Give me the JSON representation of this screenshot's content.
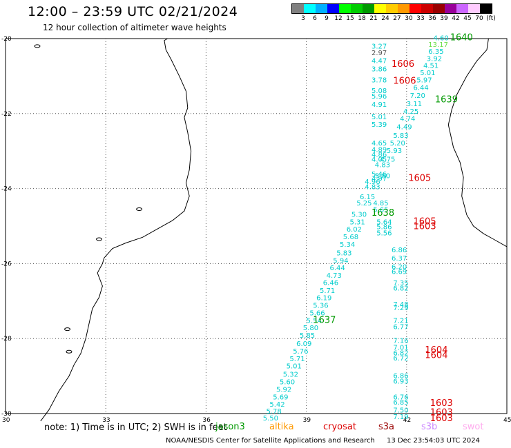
{
  "header": {
    "title": "12:00 – 23:59 UTC 02/21/2024",
    "subtitle": "12 hour collection of altimeter wave heights"
  },
  "color_scale": {
    "colors": [
      "#808080",
      "#00ffff",
      "#00b0ff",
      "#0000ff",
      "#00ff00",
      "#00cc00",
      "#009900",
      "#ffff00",
      "#ffcc00",
      "#ff9900",
      "#ff0000",
      "#cc0000",
      "#990000",
      "#990099",
      "#cc66ff",
      "#ffccff",
      "#000000"
    ],
    "labels": [
      "3",
      "6",
      "9",
      "12",
      "15",
      "18",
      "21",
      "24",
      "27",
      "30",
      "33",
      "36",
      "39",
      "42",
      "45",
      "70",
      "(ft)"
    ]
  },
  "map": {
    "lat_labels": [
      "-20",
      "-22",
      "-24",
      "-26",
      "-28",
      "-30"
    ],
    "lon_labels": [
      "30",
      "33",
      "36",
      "39",
      "42",
      "45"
    ],
    "coastline_color": "#000000",
    "grid_color": "#555555"
  },
  "observations": [
    {
      "lon": 40.95,
      "lat": -20.27,
      "label": "3.27",
      "color": "#00cccc"
    },
    {
      "lon": 40.95,
      "lat": -20.44,
      "label": "2.97",
      "color": "#555555"
    },
    {
      "lon": 40.95,
      "lat": -20.65,
      "label": "4.47",
      "color": "#00cccc"
    },
    {
      "lon": 40.95,
      "lat": -20.87,
      "label": "3.86",
      "color": "#00cccc"
    },
    {
      "lon": 40.95,
      "lat": -21.17,
      "label": "3.78",
      "color": "#00cccc"
    },
    {
      "lon": 40.95,
      "lat": -21.45,
      "label": "5.08",
      "color": "#00cccc"
    },
    {
      "lon": 40.95,
      "lat": -21.6,
      "label": "5.96",
      "color": "#00cccc"
    },
    {
      "lon": 40.95,
      "lat": -21.82,
      "label": "4.91",
      "color": "#00cccc"
    },
    {
      "lon": 40.95,
      "lat": -22.15,
      "label": "5.01",
      "color": "#00cccc"
    },
    {
      "lon": 40.95,
      "lat": -22.35,
      "label": "5.39",
      "color": "#00cccc"
    },
    {
      "lon": 40.95,
      "lat": -22.85,
      "label": "4.65",
      "color": "#00cccc"
    },
    {
      "lon": 40.95,
      "lat": -23.02,
      "label": "4.89",
      "color": "#00cccc"
    },
    {
      "lon": 40.95,
      "lat": -23.15,
      "label": "4.86",
      "color": "#00cccc"
    },
    {
      "lon": 40.95,
      "lat": -23.28,
      "label": "4.05",
      "color": "#00cccc"
    },
    {
      "lon": 41.05,
      "lat": -23.43,
      "label": "4.83",
      "color": "#00cccc"
    },
    {
      "lon": 40.95,
      "lat": -23.68,
      "label": "5.46",
      "color": "#00cccc"
    },
    {
      "lon": 40.95,
      "lat": -23.8,
      "label": "4.97",
      "color": "#00cccc"
    },
    {
      "lon": 40.75,
      "lat": -23.88,
      "label": "4.96",
      "color": "#00cccc"
    },
    {
      "lon": 40.75,
      "lat": -24.02,
      "label": "4.83",
      "color": "#00cccc"
    },
    {
      "lon": 40.6,
      "lat": -24.28,
      "label": "6.15",
      "color": "#00cccc"
    },
    {
      "lon": 40.5,
      "lat": -24.45,
      "label": "5.25",
      "color": "#00cccc"
    },
    {
      "lon": 41.0,
      "lat": -24.45,
      "label": "4.85",
      "color": "#00cccc"
    },
    {
      "lon": 41.0,
      "lat": -24.62,
      "label": "5.65",
      "color": "#00cccc"
    },
    {
      "lon": 40.35,
      "lat": -24.75,
      "label": "5.30",
      "color": "#00cccc"
    },
    {
      "lon": 40.3,
      "lat": -24.95,
      "label": "5.31",
      "color": "#00cccc"
    },
    {
      "lon": 41.1,
      "lat": -24.95,
      "label": "5.64",
      "color": "#00cccc"
    },
    {
      "lon": 41.1,
      "lat": -25.08,
      "label": "5.86",
      "color": "#00cccc"
    },
    {
      "lon": 40.2,
      "lat": -25.15,
      "label": "6.02",
      "color": "#00cccc"
    },
    {
      "lon": 41.1,
      "lat": -25.25,
      "label": "5.56",
      "color": "#00cccc"
    },
    {
      "lon": 40.1,
      "lat": -25.35,
      "label": "5.68",
      "color": "#00cccc"
    },
    {
      "lon": 40.0,
      "lat": -25.55,
      "label": "5.34",
      "color": "#00cccc"
    },
    {
      "lon": 41.55,
      "lat": -25.7,
      "label": "6.86",
      "color": "#00cccc"
    },
    {
      "lon": 39.9,
      "lat": -25.78,
      "label": "5.83",
      "color": "#00cccc"
    },
    {
      "lon": 41.55,
      "lat": -25.92,
      "label": "6.37",
      "color": "#00cccc"
    },
    {
      "lon": 39.8,
      "lat": -25.98,
      "label": "5.94",
      "color": "#00cccc"
    },
    {
      "lon": 39.7,
      "lat": -26.18,
      "label": "6.44",
      "color": "#00cccc"
    },
    {
      "lon": 41.55,
      "lat": -26.15,
      "label": "6.20",
      "color": "#00cccc"
    },
    {
      "lon": 41.55,
      "lat": -26.28,
      "label": "6.69",
      "color": "#00cccc"
    },
    {
      "lon": 39.6,
      "lat": -26.38,
      "label": "4.73",
      "color": "#00cccc"
    },
    {
      "lon": 39.5,
      "lat": -26.57,
      "label": "6.46",
      "color": "#00cccc"
    },
    {
      "lon": 41.6,
      "lat": -26.58,
      "label": "7.35",
      "color": "#00cccc"
    },
    {
      "lon": 41.6,
      "lat": -26.72,
      "label": "6.82",
      "color": "#00cccc"
    },
    {
      "lon": 39.4,
      "lat": -26.78,
      "label": "5.71",
      "color": "#00cccc"
    },
    {
      "lon": 39.3,
      "lat": -26.98,
      "label": "6.19",
      "color": "#00cccc"
    },
    {
      "lon": 41.6,
      "lat": -27.15,
      "label": "7.48",
      "color": "#00cccc"
    },
    {
      "lon": 41.6,
      "lat": -27.24,
      "label": "7.29",
      "color": "#00cccc"
    },
    {
      "lon": 39.2,
      "lat": -27.18,
      "label": "5.36",
      "color": "#00cccc"
    },
    {
      "lon": 39.1,
      "lat": -27.38,
      "label": "5.66",
      "color": "#00cccc"
    },
    {
      "lon": 39.0,
      "lat": -27.58,
      "label": "5.54",
      "color": "#00cccc"
    },
    {
      "lon": 41.6,
      "lat": -27.58,
      "label": "7.21",
      "color": "#00cccc"
    },
    {
      "lon": 41.6,
      "lat": -27.75,
      "label": "6.77",
      "color": "#00cccc"
    },
    {
      "lon": 38.9,
      "lat": -27.78,
      "label": "5.80",
      "color": "#00cccc"
    },
    {
      "lon": 38.8,
      "lat": -27.98,
      "label": "5.85",
      "color": "#00cccc"
    },
    {
      "lon": 41.6,
      "lat": -28.12,
      "label": "7.16",
      "color": "#00cccc"
    },
    {
      "lon": 38.7,
      "lat": -28.2,
      "label": "6.09",
      "color": "#00cccc"
    },
    {
      "lon": 41.6,
      "lat": -28.3,
      "label": "7.01",
      "color": "#00cccc"
    },
    {
      "lon": 38.6,
      "lat": -28.4,
      "label": "5.76",
      "color": "#00cccc"
    },
    {
      "lon": 41.6,
      "lat": -28.45,
      "label": "6.82",
      "color": "#00cccc"
    },
    {
      "lon": 41.6,
      "lat": -28.58,
      "label": "6.72",
      "color": "#00cccc"
    },
    {
      "lon": 38.5,
      "lat": -28.6,
      "label": "5.71",
      "color": "#00cccc"
    },
    {
      "lon": 38.4,
      "lat": -28.8,
      "label": "5.01",
      "color": "#00cccc"
    },
    {
      "lon": 38.3,
      "lat": -29.02,
      "label": "5.32",
      "color": "#00cccc"
    },
    {
      "lon": 41.6,
      "lat": -29.05,
      "label": "6.86",
      "color": "#00cccc"
    },
    {
      "lon": 41.6,
      "lat": -29.2,
      "label": "6.93",
      "color": "#00cccc"
    },
    {
      "lon": 38.2,
      "lat": -29.22,
      "label": "5.60",
      "color": "#00cccc"
    },
    {
      "lon": 38.1,
      "lat": -29.42,
      "label": "5.92",
      "color": "#00cccc"
    },
    {
      "lon": 38.0,
      "lat": -29.62,
      "label": "5.69",
      "color": "#00cccc"
    },
    {
      "lon": 41.6,
      "lat": -29.62,
      "label": "6.76",
      "color": "#00cccc"
    },
    {
      "lon": 41.6,
      "lat": -29.76,
      "label": "6.85",
      "color": "#00cccc"
    },
    {
      "lon": 37.9,
      "lat": -29.82,
      "label": "5.42",
      "color": "#00cccc"
    },
    {
      "lon": 41.6,
      "lat": -29.97,
      "label": "7.50",
      "color": "#00cccc"
    },
    {
      "lon": 37.8,
      "lat": -30.0,
      "label": "5.78",
      "color": "#00cccc"
    },
    {
      "lon": 41.6,
      "lat": -30.15,
      "label": "7.19",
      "color": "#00cccc"
    },
    {
      "lon": 37.7,
      "lat": -30.18,
      "label": "5.50",
      "color": "#00cccc"
    },
    {
      "lon": 42.8,
      "lat": -20.05,
      "label": "4.60",
      "color": "#00cccc"
    },
    {
      "lon": 42.65,
      "lat": -20.22,
      "label": "13.17",
      "color": "#66dd44"
    },
    {
      "lon": 42.65,
      "lat": -20.4,
      "label": "6.35",
      "color": "#00cccc"
    },
    {
      "lon": 42.6,
      "lat": -20.6,
      "label": "3.92",
      "color": "#00cccc"
    },
    {
      "lon": 42.5,
      "lat": -20.78,
      "label": "4.51",
      "color": "#00cccc"
    },
    {
      "lon": 42.4,
      "lat": -20.97,
      "label": "5.01",
      "color": "#00cccc"
    },
    {
      "lon": 42.3,
      "lat": -21.17,
      "label": "5.97",
      "color": "#00cccc"
    },
    {
      "lon": 42.2,
      "lat": -21.37,
      "label": "6.44",
      "color": "#00cccc"
    },
    {
      "lon": 42.1,
      "lat": -21.58,
      "label": "7.20",
      "color": "#00cccc"
    },
    {
      "lon": 42.0,
      "lat": -21.8,
      "label": "3.11",
      "color": "#00cccc"
    },
    {
      "lon": 41.9,
      "lat": -22.0,
      "label": "4.25",
      "color": "#00cccc"
    },
    {
      "lon": 41.8,
      "lat": -22.2,
      "label": "4.74",
      "color": "#00cccc"
    },
    {
      "lon": 41.7,
      "lat": -22.42,
      "label": "4.49",
      "color": "#00cccc"
    },
    {
      "lon": 41.6,
      "lat": -22.65,
      "label": "5.83",
      "color": "#00cccc"
    },
    {
      "lon": 41.5,
      "lat": -22.85,
      "label": "5.20",
      "color": "#00cccc"
    },
    {
      "lon": 41.4,
      "lat": -23.05,
      "label": "5.93",
      "color": "#00cccc"
    },
    {
      "lon": 41.2,
      "lat": -23.28,
      "label": "4.75",
      "color": "#00cccc"
    },
    {
      "lon": 41.05,
      "lat": -23.72,
      "label": "5.80",
      "color": "#00cccc"
    },
    {
      "lon": 42.05,
      "lat": -23.8,
      "label": "1605",
      "color": "#dd0000",
      "big": true
    },
    {
      "lon": 40.95,
      "lat": -24.72,
      "label": "1638",
      "color": "#009900",
      "big": true
    },
    {
      "lon": 42.2,
      "lat": -24.95,
      "label": "1605",
      "color": "#dd0000",
      "big": true
    },
    {
      "lon": 42.2,
      "lat": -25.08,
      "label": "1603",
      "color": "#dd0000",
      "big": true
    },
    {
      "lon": 39.2,
      "lat": -27.58,
      "label": "1637",
      "color": "#009900",
      "big": true
    },
    {
      "lon": 42.55,
      "lat": -28.38,
      "label": "1604",
      "color": "#dd0000",
      "big": true
    },
    {
      "lon": 42.55,
      "lat": -28.52,
      "label": "1604",
      "color": "#dd0000",
      "big": true
    },
    {
      "lon": 42.7,
      "lat": -29.8,
      "label": "1603",
      "color": "#dd0000",
      "big": true
    },
    {
      "lon": 42.7,
      "lat": -30.05,
      "label": "1603",
      "color": "#dd0000",
      "big": true
    },
    {
      "lon": 42.7,
      "lat": -30.2,
      "label": "1603",
      "color": "#dd0000",
      "big": true
    },
    {
      "lon": 41.55,
      "lat": -20.75,
      "label": "1606",
      "color": "#dd0000",
      "big": true
    },
    {
      "lon": 41.6,
      "lat": -21.2,
      "label": "1606",
      "color": "#dd0000",
      "big": true
    },
    {
      "lon": 43.3,
      "lat": -20.05,
      "label": "1640",
      "color": "#009900",
      "big": true
    },
    {
      "lon": 42.85,
      "lat": -21.7,
      "label": "1639",
      "color": "#009900",
      "big": true
    }
  ],
  "footer": {
    "note": "note: 1) Time is in UTC; 2) SWH is in feet",
    "sources": [
      {
        "name": "jason3",
        "color": "#009900"
      },
      {
        "name": "altika",
        "color": "#ff9900"
      },
      {
        "name": "cryosat",
        "color": "#dd0000"
      },
      {
        "name": "s3a",
        "color": "#990000"
      },
      {
        "name": "s3b",
        "color": "#cc88ff"
      },
      {
        "name": "swot",
        "color": "#ffaaee"
      }
    ],
    "credit_org": "NOAA/NESDIS Center for Satellite Applications and Research",
    "credit_date": "13 Dec 23:54:03 UTC 2024"
  }
}
